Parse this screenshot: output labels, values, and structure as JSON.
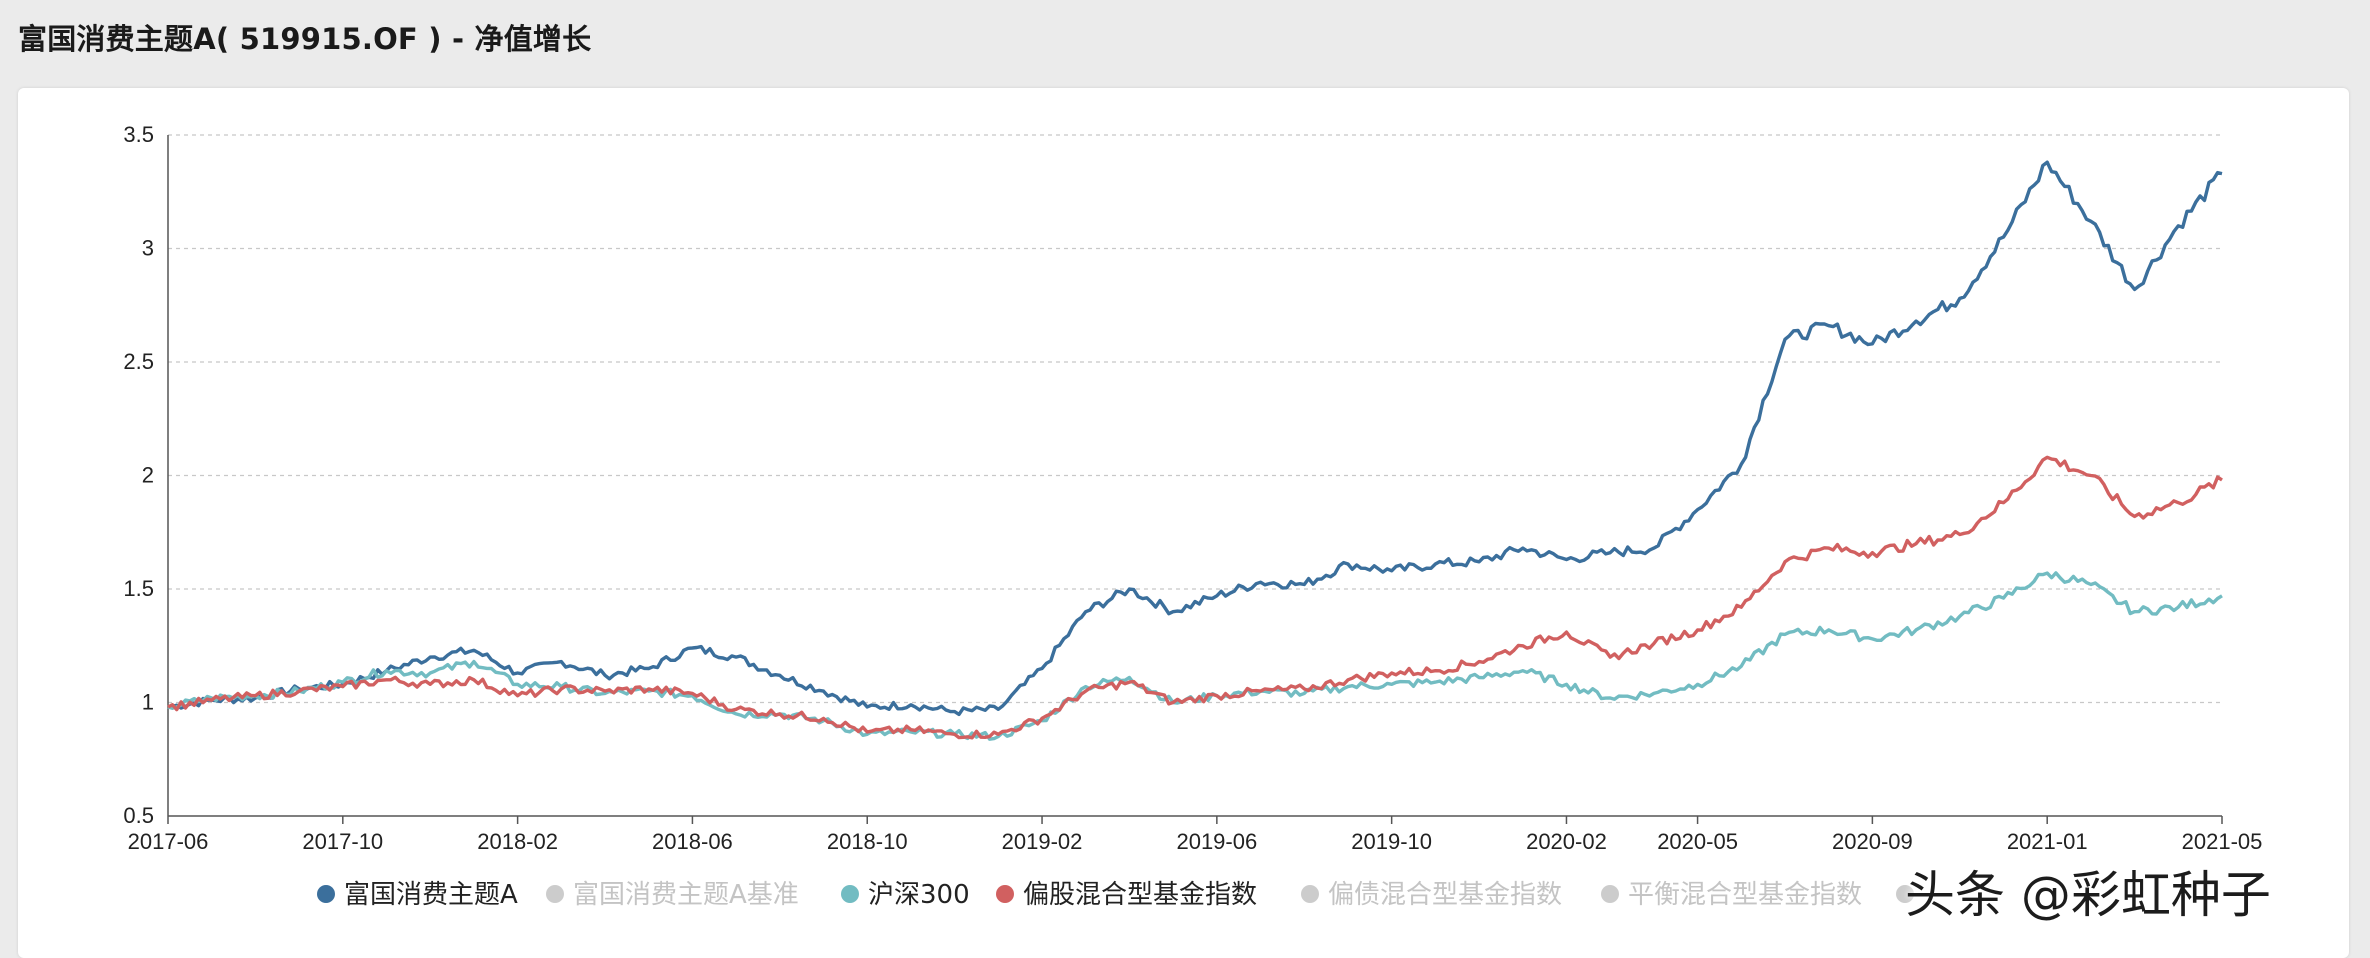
{
  "header": {
    "title": "富国消费主题A( 519915.OF ) - 净值增长"
  },
  "watermark": {
    "text": "头条 @彩虹种子"
  },
  "chart_data": {
    "type": "line",
    "x_ticks": [
      "2017-06",
      "2017-10",
      "2018-02",
      "2018-06",
      "2018-10",
      "2019-02",
      "2019-06",
      "2019-10",
      "2020-02",
      "2020-05",
      "2020-09",
      "2021-01",
      "2021-05"
    ],
    "y_ticks": [
      0.5,
      1,
      1.5,
      2,
      2.5,
      3,
      3.5
    ],
    "ylim": [
      0.5,
      3.5
    ],
    "grid": true,
    "legend_position": "bottom",
    "series": [
      {
        "name": "富国消费主题A",
        "color": "#3b6f9c",
        "visible": true,
        "points": [
          [
            "2017-06",
            0.98
          ],
          [
            "2017-07",
            1.01
          ],
          [
            "2017-08",
            1.02
          ],
          [
            "2017-09",
            1.06
          ],
          [
            "2017-10",
            1.08
          ],
          [
            "2017-11",
            1.14
          ],
          [
            "2017-12",
            1.2
          ],
          [
            "2018-01",
            1.23
          ],
          [
            "2018-02",
            1.13
          ],
          [
            "2018-03",
            1.18
          ],
          [
            "2018-04",
            1.12
          ],
          [
            "2018-05",
            1.15
          ],
          [
            "2018-06",
            1.24
          ],
          [
            "2018-07",
            1.2
          ],
          [
            "2018-08",
            1.12
          ],
          [
            "2018-09",
            1.05
          ],
          [
            "2018-10",
            0.98
          ],
          [
            "2018-11",
            0.99
          ],
          [
            "2018-12",
            0.96
          ],
          [
            "2019-01",
            0.97
          ],
          [
            "2019-02",
            1.15
          ],
          [
            "2019-03",
            1.4
          ],
          [
            "2019-04",
            1.5
          ],
          [
            "2019-05",
            1.4
          ],
          [
            "2019-06",
            1.47
          ],
          [
            "2019-07",
            1.53
          ],
          [
            "2019-08",
            1.52
          ],
          [
            "2019-09",
            1.61
          ],
          [
            "2019-10",
            1.58
          ],
          [
            "2019-11",
            1.61
          ],
          [
            "2019-12",
            1.62
          ],
          [
            "2020-01",
            1.68
          ],
          [
            "2020-02",
            1.63
          ],
          [
            "2020-03",
            1.66
          ],
          [
            "2020-04",
            1.68
          ],
          [
            "2020-05",
            1.85
          ],
          [
            "2020-06",
            2.05
          ],
          [
            "2020-07",
            2.6
          ],
          [
            "2020-08",
            2.66
          ],
          [
            "2020-09",
            2.58
          ],
          [
            "2020-10",
            2.68
          ],
          [
            "2020-11",
            2.78
          ],
          [
            "2020-12",
            3.05
          ],
          [
            "2021-01",
            3.38
          ],
          [
            "2021-02",
            3.12
          ],
          [
            "2021-03",
            2.82
          ],
          [
            "2021-04",
            3.1
          ],
          [
            "2021-05",
            3.33
          ]
        ]
      },
      {
        "name": "富国消费主题A基准",
        "color": "#cccccc",
        "visible": false,
        "points": []
      },
      {
        "name": "沪深300",
        "color": "#72bcc2",
        "visible": true,
        "points": [
          [
            "2017-06",
            0.98
          ],
          [
            "2017-07",
            1.02
          ],
          [
            "2017-08",
            1.03
          ],
          [
            "2017-09",
            1.05
          ],
          [
            "2017-10",
            1.09
          ],
          [
            "2017-11",
            1.14
          ],
          [
            "2017-12",
            1.13
          ],
          [
            "2018-01",
            1.18
          ],
          [
            "2018-02",
            1.08
          ],
          [
            "2018-03",
            1.07
          ],
          [
            "2018-04",
            1.04
          ],
          [
            "2018-05",
            1.05
          ],
          [
            "2018-06",
            1.03
          ],
          [
            "2018-07",
            0.95
          ],
          [
            "2018-08",
            0.95
          ],
          [
            "2018-09",
            0.92
          ],
          [
            "2018-10",
            0.86
          ],
          [
            "2018-11",
            0.87
          ],
          [
            "2018-12",
            0.86
          ],
          [
            "2019-01",
            0.85
          ],
          [
            "2019-02",
            0.92
          ],
          [
            "2019-03",
            1.07
          ],
          [
            "2019-04",
            1.11
          ],
          [
            "2019-05",
            1.0
          ],
          [
            "2019-06",
            1.03
          ],
          [
            "2019-07",
            1.05
          ],
          [
            "2019-08",
            1.04
          ],
          [
            "2019-09",
            1.07
          ],
          [
            "2019-10",
            1.08
          ],
          [
            "2019-11",
            1.09
          ],
          [
            "2019-12",
            1.11
          ],
          [
            "2020-01",
            1.14
          ],
          [
            "2020-02",
            1.08
          ],
          [
            "2020-03",
            1.02
          ],
          [
            "2020-04",
            1.04
          ],
          [
            "2020-05",
            1.08
          ],
          [
            "2020-06",
            1.16
          ],
          [
            "2020-07",
            1.3
          ],
          [
            "2020-08",
            1.32
          ],
          [
            "2020-09",
            1.28
          ],
          [
            "2020-10",
            1.32
          ],
          [
            "2020-11",
            1.38
          ],
          [
            "2020-12",
            1.46
          ],
          [
            "2021-01",
            1.57
          ],
          [
            "2021-02",
            1.52
          ],
          [
            "2021-03",
            1.4
          ],
          [
            "2021-04",
            1.42
          ],
          [
            "2021-05",
            1.47
          ]
        ]
      },
      {
        "name": "偏股混合型基金指数",
        "color": "#d16060",
        "visible": true,
        "points": [
          [
            "2017-06",
            0.98
          ],
          [
            "2017-07",
            1.01
          ],
          [
            "2017-08",
            1.03
          ],
          [
            "2017-09",
            1.05
          ],
          [
            "2017-10",
            1.07
          ],
          [
            "2017-11",
            1.1
          ],
          [
            "2017-12",
            1.08
          ],
          [
            "2018-01",
            1.1
          ],
          [
            "2018-02",
            1.03
          ],
          [
            "2018-03",
            1.06
          ],
          [
            "2018-04",
            1.05
          ],
          [
            "2018-05",
            1.06
          ],
          [
            "2018-06",
            1.04
          ],
          [
            "2018-07",
            0.97
          ],
          [
            "2018-08",
            0.95
          ],
          [
            "2018-09",
            0.93
          ],
          [
            "2018-10",
            0.87
          ],
          [
            "2018-11",
            0.88
          ],
          [
            "2018-12",
            0.86
          ],
          [
            "2019-01",
            0.86
          ],
          [
            "2019-02",
            0.93
          ],
          [
            "2019-03",
            1.05
          ],
          [
            "2019-04",
            1.09
          ],
          [
            "2019-05",
            1.0
          ],
          [
            "2019-06",
            1.03
          ],
          [
            "2019-07",
            1.05
          ],
          [
            "2019-08",
            1.06
          ],
          [
            "2019-09",
            1.1
          ],
          [
            "2019-10",
            1.13
          ],
          [
            "2019-11",
            1.14
          ],
          [
            "2019-12",
            1.18
          ],
          [
            "2020-01",
            1.25
          ],
          [
            "2020-02",
            1.31
          ],
          [
            "2020-03",
            1.2
          ],
          [
            "2020-04",
            1.26
          ],
          [
            "2020-05",
            1.32
          ],
          [
            "2020-06",
            1.42
          ],
          [
            "2020-07",
            1.62
          ],
          [
            "2020-08",
            1.68
          ],
          [
            "2020-09",
            1.66
          ],
          [
            "2020-10",
            1.7
          ],
          [
            "2020-11",
            1.74
          ],
          [
            "2020-12",
            1.88
          ],
          [
            "2021-01",
            2.08
          ],
          [
            "2021-02",
            2.0
          ],
          [
            "2021-03",
            1.82
          ],
          [
            "2021-04",
            1.88
          ],
          [
            "2021-05",
            1.98
          ]
        ]
      },
      {
        "name": "偏债混合型基金指数",
        "color": "#cccccc",
        "visible": false,
        "points": []
      },
      {
        "name": "平衡混合型基金指数",
        "color": "#cccccc",
        "visible": false,
        "points": []
      },
      {
        "name": "",
        "color": "#cccccc",
        "visible": false,
        "points": []
      }
    ]
  }
}
